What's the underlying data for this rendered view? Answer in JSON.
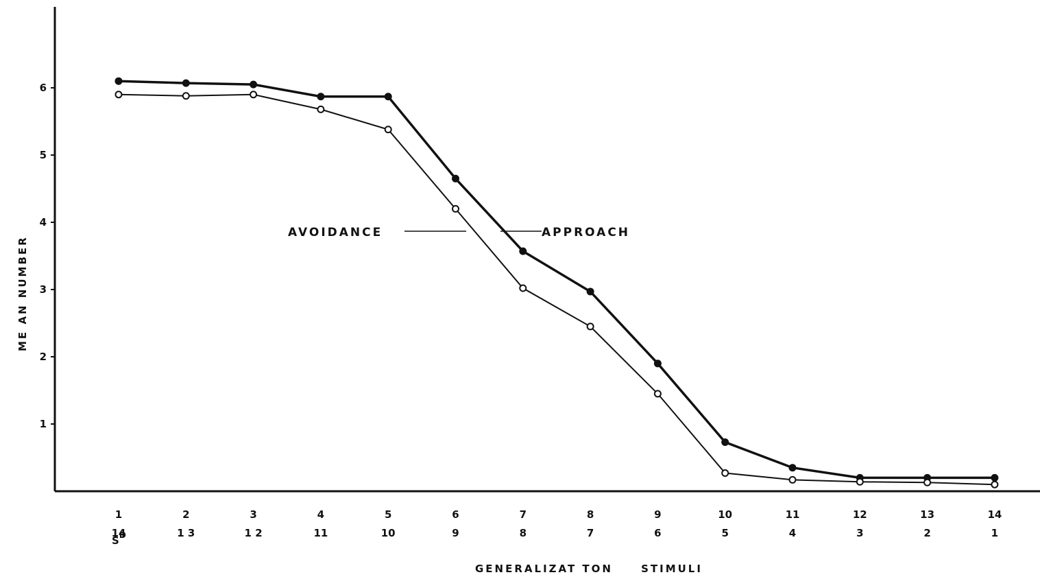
{
  "chart_data": {
    "type": "line",
    "xlabel": "GENERALIZAT TON     STIMULI",
    "ylabel": "ME AN     NUMBER",
    "ylim": [
      0,
      7
    ],
    "yticks": [
      "1",
      "2",
      "3",
      "4",
      "5",
      "6"
    ],
    "x": [
      1,
      2,
      3,
      4,
      5,
      6,
      7,
      8,
      9,
      10,
      11,
      12,
      13,
      14
    ],
    "category_rows": [
      [
        "1",
        "2",
        "3",
        "4",
        "5",
        "6",
        "7",
        "8",
        "9",
        "10",
        "11",
        "12",
        "13",
        "14"
      ],
      [
        "14",
        "1 3",
        "1 2",
        "11",
        "10",
        "9",
        "8",
        "7",
        "6",
        "5",
        "4",
        "3",
        "2",
        "1"
      ]
    ],
    "sd_label": "S",
    "sd_superscript": "D",
    "series": [
      {
        "name": "APPROACH",
        "marker": "filled",
        "values": [
          6.1,
          6.07,
          6.05,
          5.87,
          5.87,
          4.65,
          3.57,
          2.97,
          1.9,
          0.73,
          0.35,
          0.2,
          0.2,
          0.2
        ]
      },
      {
        "name": "AVOIDANCE",
        "marker": "open",
        "values": [
          5.9,
          5.88,
          5.9,
          5.68,
          5.38,
          4.2,
          3.02,
          2.45,
          1.45,
          0.27,
          0.17,
          0.14,
          0.13,
          0.1
        ]
      }
    ],
    "grid": false,
    "legend": "inline labels"
  }
}
